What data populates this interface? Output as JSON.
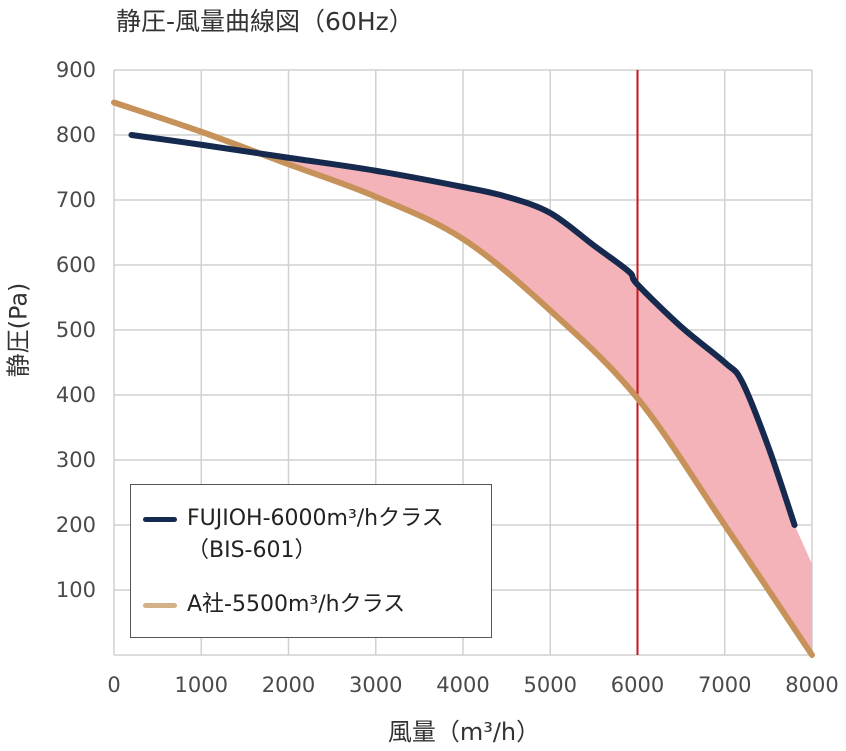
{
  "chart_data": {
    "type": "line",
    "title": "静圧-風量曲線図（60Hz）",
    "xlabel": "風量（m³/h）",
    "ylabel": "静圧(Pa)",
    "xlim": [
      0,
      8000
    ],
    "ylim": [
      0,
      900
    ],
    "xticks": [
      "0",
      "1000",
      "2000",
      "3000",
      "4000",
      "5000",
      "6000",
      "7000",
      "8000"
    ],
    "yticks": [
      "100",
      "200",
      "300",
      "400",
      "500",
      "600",
      "700",
      "800",
      "900"
    ],
    "grid": true,
    "legend_position": "bottom-left",
    "reference_line": {
      "x": 6000,
      "color": "#c8141e"
    },
    "fill_between": {
      "color": "#f4b3b8"
    },
    "series": [
      {
        "name": "FUJIOH-6000m³/hクラス",
        "name_sub": "（BIS-601）",
        "color": "#152a4e",
        "x": [
          200,
          1000,
          2000,
          3000,
          4000,
          4500,
          5000,
          5500,
          5900,
          6000,
          6500,
          7000,
          7200,
          7500,
          7800
        ],
        "y": [
          800,
          785,
          765,
          745,
          720,
          705,
          680,
          630,
          590,
          570,
          505,
          450,
          420,
          320,
          200
        ]
      },
      {
        "name": "A社-5500m³/hクラス",
        "color": "#c6925a",
        "legend_color": "#d4b287",
        "x": [
          0,
          1000,
          2000,
          3000,
          4000,
          5000,
          6000,
          7000,
          8000
        ],
        "y": [
          850,
          805,
          755,
          705,
          640,
          530,
          395,
          200,
          0
        ]
      }
    ]
  }
}
